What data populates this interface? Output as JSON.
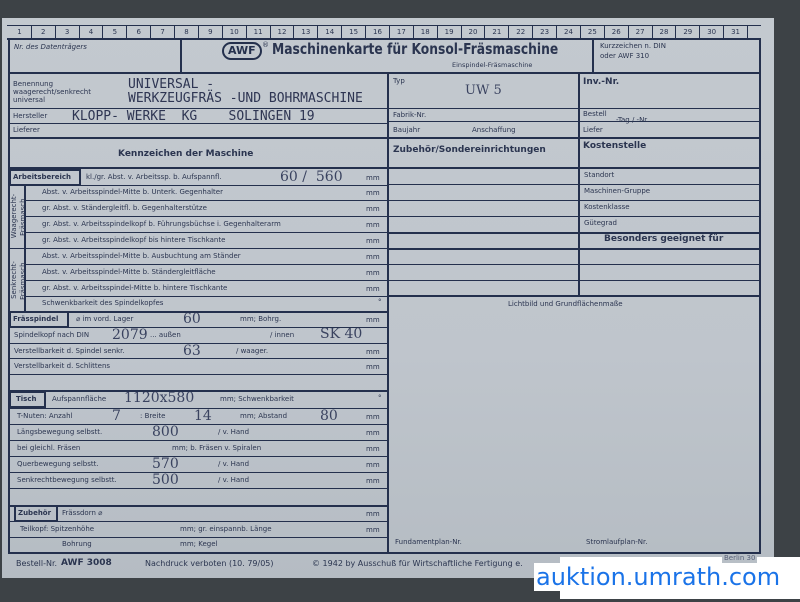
{
  "columns": [
    "1",
    "2",
    "3",
    "4",
    "5",
    "6",
    "7",
    "8",
    "9",
    "10",
    "11",
    "12",
    "13",
    "14",
    "15",
    "16",
    "17",
    "18",
    "19",
    "20",
    "21",
    "22",
    "23",
    "24",
    "25",
    "26",
    "27",
    "28",
    "29",
    "30",
    "31"
  ],
  "header": {
    "datentraeger": "Nr. des Datenträgers",
    "logo": "AWF",
    "logo_mark": "®",
    "title": "Maschinenkarte für Konsol-Fräsmaschine",
    "subtitle": "Einspindel-Fräsmaschine",
    "kurzzeichen_1": "Kurzzeichen n. DIN",
    "kurzzeichen_2": "oder AWF 310"
  },
  "info": {
    "benennung_label_1": "Benennung",
    "benennung_label_2": "waagerecht/senkrecht",
    "benennung_label_3": "universal",
    "benennung_value_1": "UNIVERSAL -",
    "benennung_value_2": "WERKZEUGFRÄS -UND BOHRMASCHINE",
    "hersteller_label": "Hersteller",
    "hersteller_value": "KLOPP- WERKE  KG    SOLINGEN 19",
    "lieferer_label": "Lieferer",
    "typ_label": "Typ",
    "typ_value": "UW 5",
    "fabrik_label": "Fabrik-Nr.",
    "baujahr_label": "Baujahr",
    "anschaffung_label": "Anschaffung",
    "inv_label": "Inv.-Nr.",
    "bestell_label": "Bestell",
    "tag_label": "-Tag / -Nr.",
    "liefer_label": "Liefer"
  },
  "sections": {
    "kennzeichen": "Kennzeichen der Maschine",
    "zubehoer": "Zubehör/Sondereinrichtungen",
    "kostenstelle": "Kostenstelle",
    "besonders": "Besonders geeignet für",
    "lichtbild": "Lichtbild und Grundflächenmaße",
    "fundament": "Fundamentplan-Nr.",
    "stromlauf": "Stromlaufplan-Nr."
  },
  "kosten": [
    "Standort",
    "Maschinen-Gruppe",
    "Kostenklasse",
    "Gütegrad"
  ],
  "arbeitsbereich": {
    "tag": "Arbeitsbereich",
    "label": "kl./gr. Abst. v. Arbeitssp. b. Aufspannfl.",
    "value": "60 /  560",
    "unit": "mm"
  },
  "waagerecht_label": "Waagerecht-\nFräsmasch.",
  "waagerecht": [
    "Abst. v. Arbeitsspindel-Mitte b. Unterk. Gegenhalter",
    "gr. Abst. v. Ständergleitfl. b. Gegenhalterstütze",
    "gr. Abst. v. Arbeitsspindelkopf b. Führungsbüchse i. Gegenhalterarm",
    "gr. Abst. v. Arbeitsspindelkopf bis hintere Tischkante"
  ],
  "senkrecht_label": "Senkrecht-\nFräsmasch.",
  "senkrecht": [
    "Abst. v. Arbeitsspindel-Mitte b. Ausbuchtung am Ständer",
    "Abst. v. Arbeitsspindel-Mitte b. Ständergleitfläche",
    "gr. Abst. v. Arbeitsspindel-Mitte b. hintere Tischkante"
  ],
  "schwenkbarkeit": "Schwenkbarkeit des Spindelkopfes",
  "unit_mm": "mm",
  "unit_deg": "°",
  "spindel": {
    "tag": "Frässpindel",
    "lager": "⌀ im vord. Lager",
    "lager_value": "60",
    "bohrung": "mm; Bohrg.",
    "kopf": "Spindelkopf nach DIN",
    "kopf_value": "2079",
    "aussen": "... außen",
    "innen": "/ innen",
    "innen_value": "SK 40",
    "verstell": "Verstellbarkeit d. Spindel senkr.",
    "verstell_value": "63",
    "waager": "/ waager.",
    "schlitten": "Verstellbarkeit d. Schlittens"
  },
  "tisch": {
    "tag": "Tisch",
    "aufspann": "Aufspannfläche",
    "aufspann_value": "1120x580",
    "schwenk": "mm; Schwenkbarkeit",
    "nuten": "T-Nuten: Anzahl",
    "nuten_value": "7",
    "breite": ": Breite",
    "breite_value": "14",
    "abstand": "mm; Abstand",
    "abstand_value": "80",
    "laengs": "Längsbewegung selbstt.",
    "laengs_value": "800",
    "hand": "/ v. Hand",
    "gleichl": "bei gleichl. Fräsen",
    "spiralen": "mm; b. Fräsen v. Spiralen",
    "quer": "Querbewegung selbstt.",
    "quer_value": "570",
    "senk": "Senkrechtbewegung selbstt.",
    "senk_value": "500"
  },
  "zubehoer": {
    "tag": "Zubehör",
    "dorn": "Frässdorn ⌀",
    "teilkopf": "Teilkopf: Spitzenhöhe",
    "laenge": "mm; gr. einspannb. Länge",
    "bohrung": "Bohrung",
    "kegel": "mm; Kegel"
  },
  "footer": {
    "bestell": "Bestell-Nr.",
    "bestell_value": "AWF 3008",
    "nachdruck": "Nachdruck verboten (10. 79/05)",
    "copyright": "© 1942 by Ausschuß für Wirtschaftliche Fertigung e.",
    "berlin": "Berlin 30"
  },
  "watermark": "auktion.umrath.com",
  "colors": {
    "ink": "#24304d",
    "paper": "#c0c6cc",
    "watermark": "#1a73e8"
  }
}
